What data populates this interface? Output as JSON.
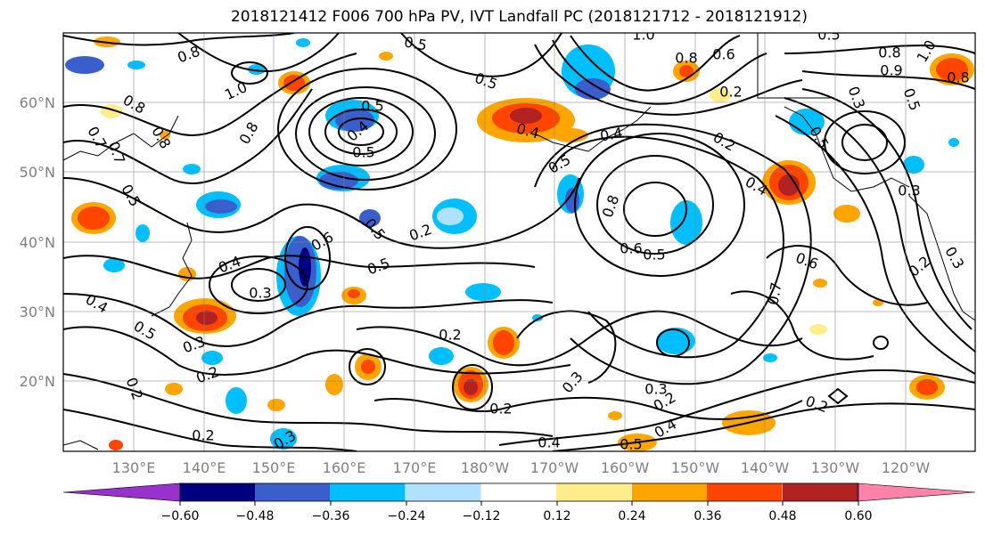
{
  "title": "2018121412 F006 700 hPa PV, IVT Landfall PC (2018121712 - 2018121912)",
  "lat_labels": [
    "60°N",
    "50°N",
    "40°N",
    "30°N",
    "20°N"
  ],
  "lon_labels": [
    "130°E",
    "140°E",
    "150°E",
    "160°E",
    "170°E",
    "180°W",
    "170°W",
    "160°W",
    "150°W",
    "140°W",
    "130°W",
    "120°W"
  ],
  "colorbar": {
    "ticks": [
      "−0.60",
      "−0.48",
      "−0.36",
      "−0.24",
      "−0.12",
      "0.12",
      "0.24",
      "0.36",
      "0.48",
      "0.60"
    ],
    "colors": [
      "#9932cc",
      "#000080",
      "#3a5fcd",
      "#00bfff",
      "#b0e2ff",
      "#ffffff",
      "#ffec8b",
      "#ffa500",
      "#ff4500",
      "#b22222",
      "#ff82ab"
    ]
  },
  "contour_labels": [
    "0.8",
    "0.5",
    "1.0",
    "0.5",
    "0.8",
    "0.8",
    "1.0",
    "0.6",
    "0.9",
    "0.5",
    "0.8",
    "0.8",
    "0.8",
    "1.0",
    "0.4",
    "0.5",
    "0.5",
    "0.7",
    "0.3",
    "0.5",
    "0.6",
    "0.4",
    "0.4",
    "0.5",
    "0.5",
    "0.2",
    "0.7",
    "0.8",
    "0.8",
    "0.3",
    "0.4",
    "0.6",
    "0.3",
    "0.2",
    "0.2",
    "0.5",
    "0.5",
    "0.5",
    "0.6",
    "0.7",
    "0.4",
    "0.5",
    "0.3",
    "0.4",
    "0.2",
    "0.5",
    "0.2",
    "0.4",
    "0.2",
    "0.3",
    "0.3",
    "0.2",
    "0.2",
    "0.2",
    "0.2",
    "0.4",
    "0.5",
    "0.3",
    "0.2",
    "0.3"
  ]
}
